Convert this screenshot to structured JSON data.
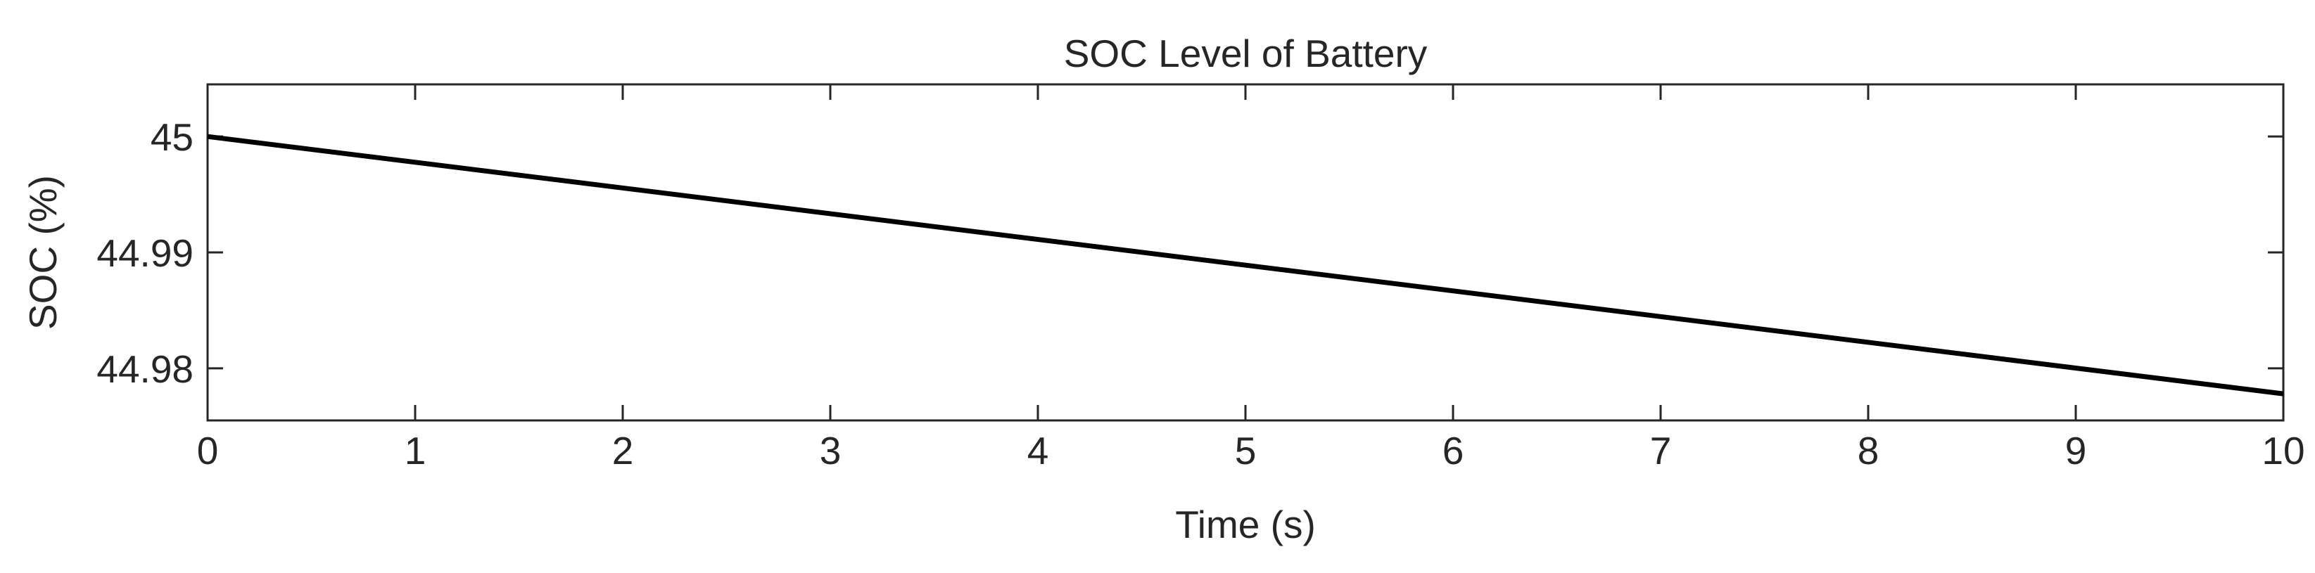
{
  "chart_data": {
    "type": "line",
    "title": "SOC Level of Battery",
    "xlabel": "Time (s)",
    "ylabel": "SOC (%)",
    "xlim": [
      0,
      10
    ],
    "ylim": [
      44.9755,
      45.0045
    ],
    "xticks": [
      0,
      1,
      2,
      3,
      4,
      5,
      6,
      7,
      8,
      9,
      10
    ],
    "xtick_labels": [
      "0",
      "1",
      "2",
      "3",
      "4",
      "5",
      "6",
      "7",
      "8",
      "9",
      "10"
    ],
    "yticks": [
      44.98,
      44.99,
      45
    ],
    "ytick_labels": [
      "44.98",
      "44.99",
      "45"
    ],
    "grid": false,
    "series": [
      {
        "name": "SOC",
        "color": "#000000",
        "x": [
          0,
          10
        ],
        "y": [
          45.0,
          44.9778
        ]
      }
    ]
  }
}
